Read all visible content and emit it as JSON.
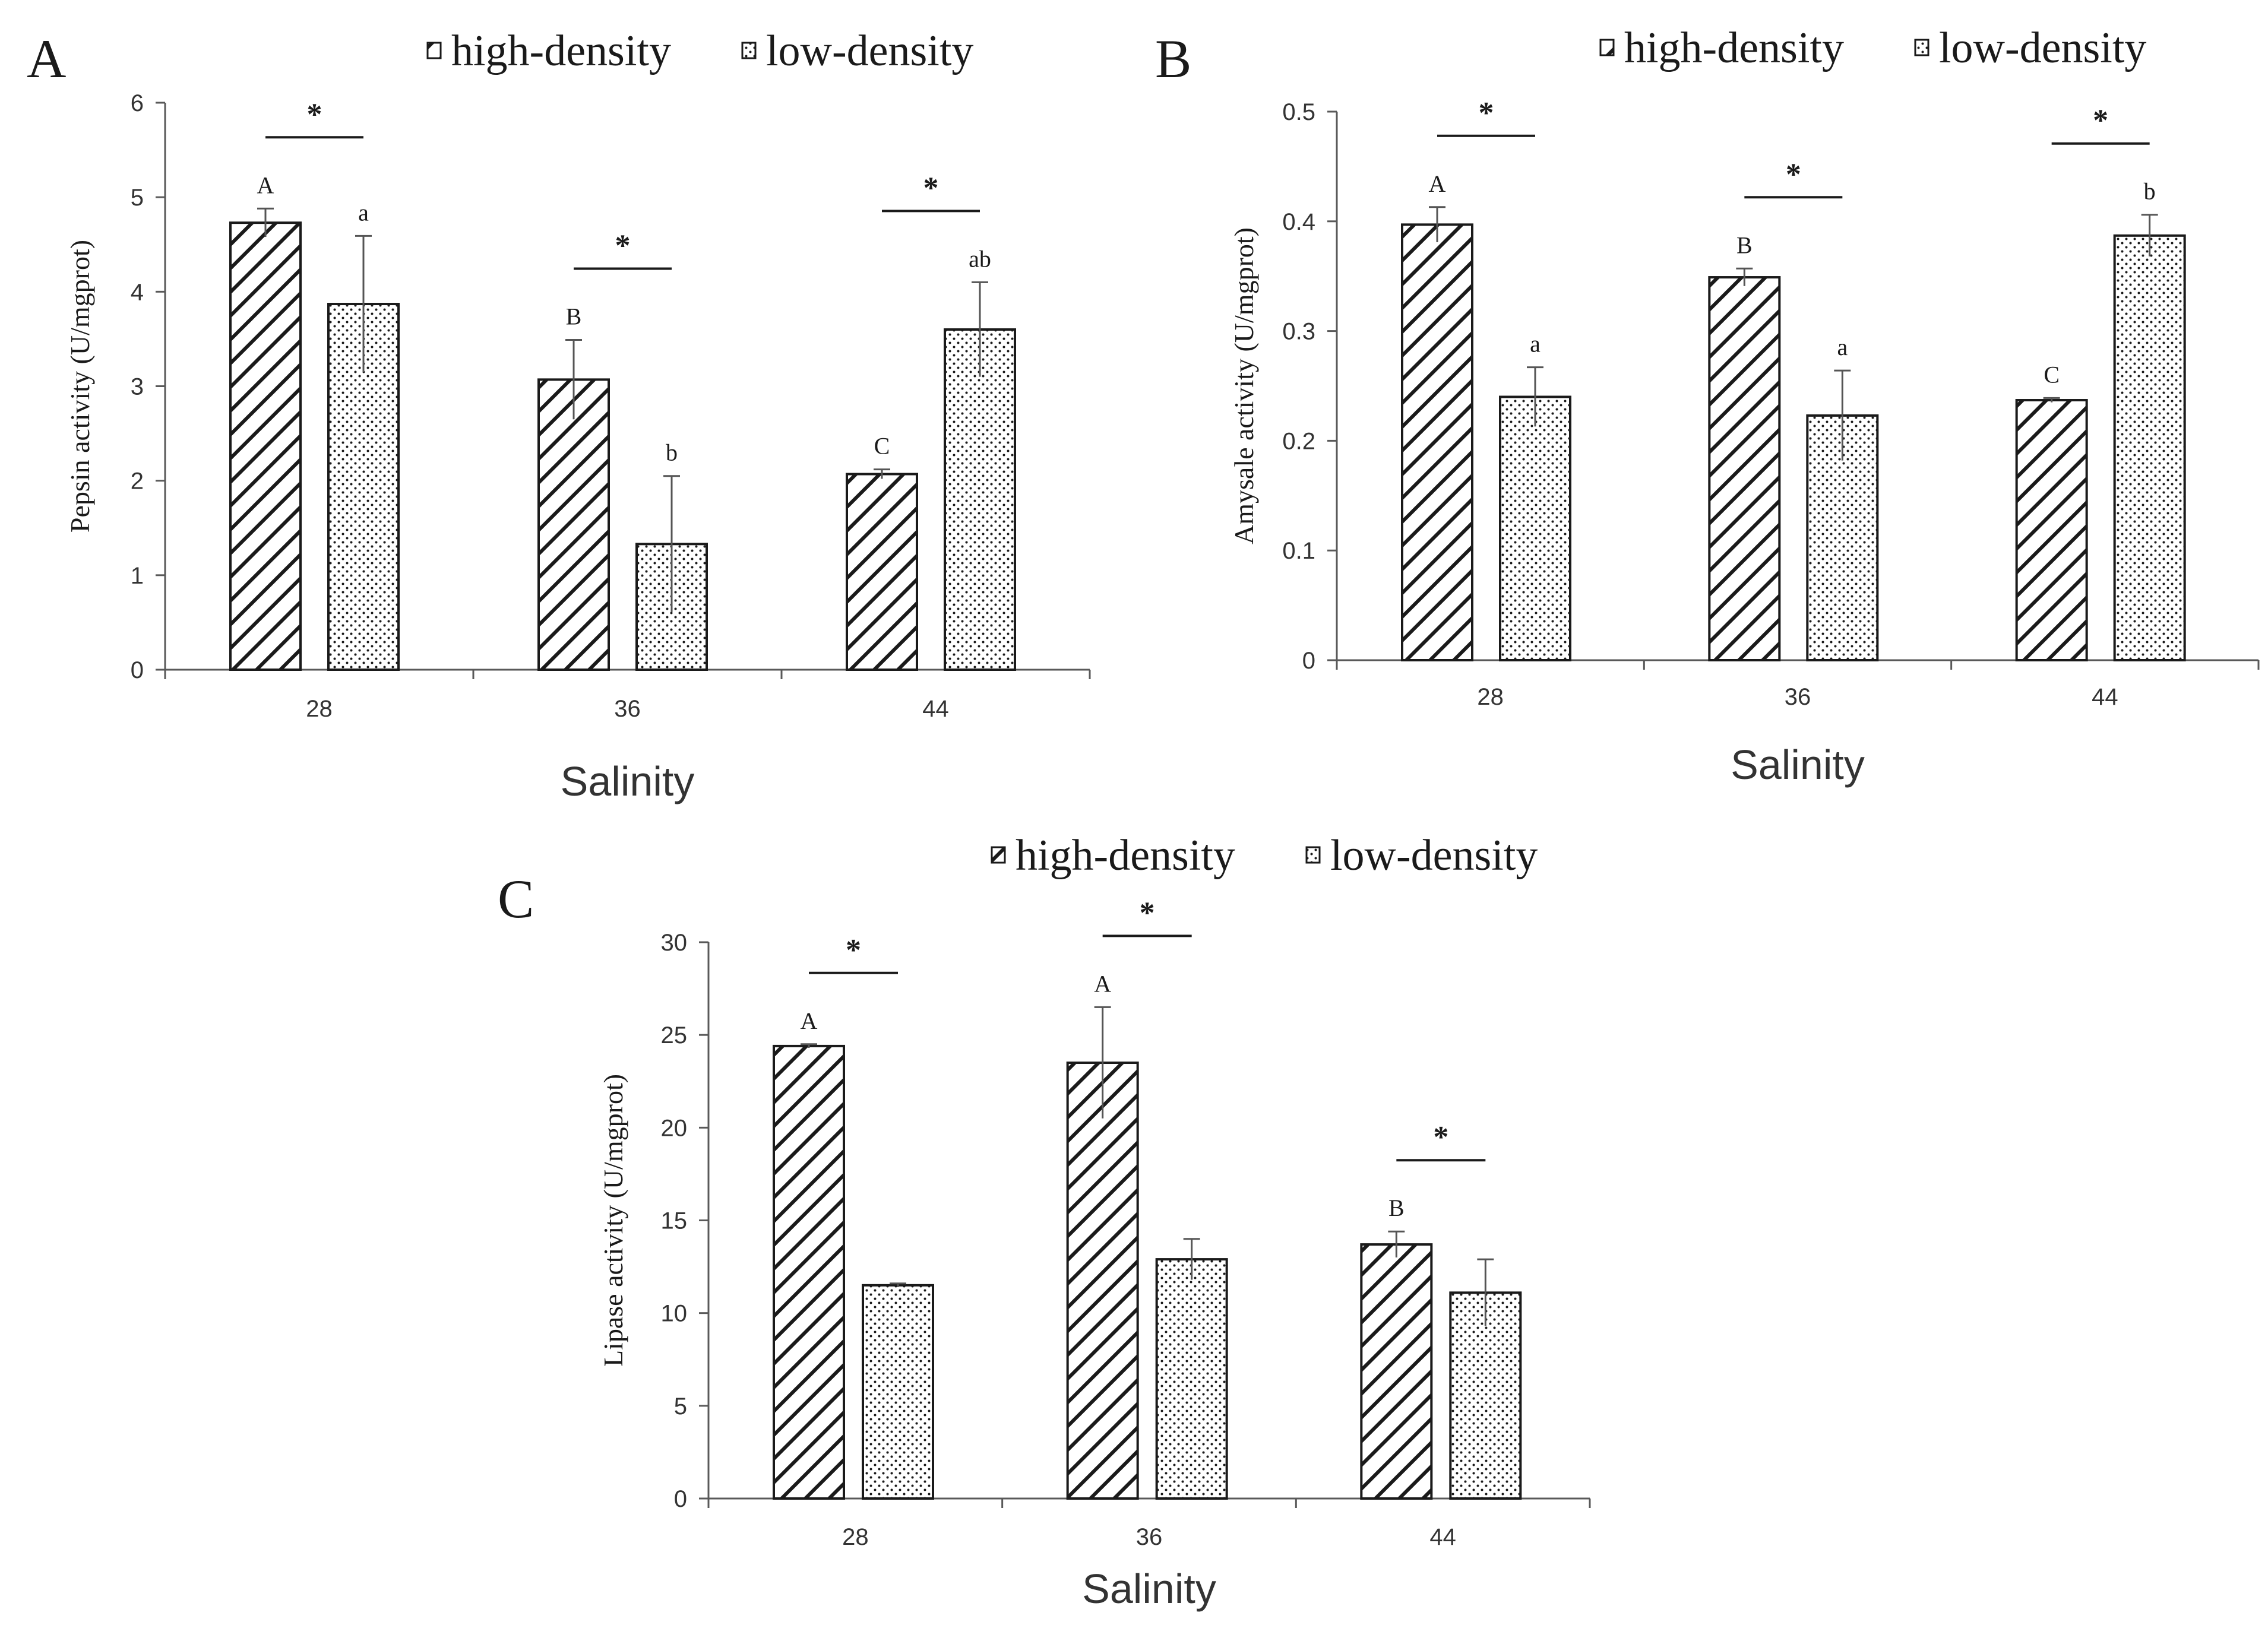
{
  "figure": {
    "legend": {
      "high_label": "high-density",
      "low_label": "low-density"
    },
    "colors": {
      "axis": "#595959",
      "bar_edge": "#1a1a1a",
      "bar_fill": "#ffffff",
      "text": "#1a1a1a",
      "tick_text": "#333333"
    },
    "icons": {
      "high": "hatch-pattern-swatch",
      "low": "dot-pattern-swatch"
    }
  },
  "chart_data": [
    {
      "panel_label": "A",
      "type": "bar",
      "xlabel": "Salinity",
      "ylabel": "Pepsin activity (U/mgprot)",
      "ylim": [
        0,
        6
      ],
      "yticks": [
        "0",
        "1",
        "2",
        "3",
        "4",
        "5",
        "6"
      ],
      "legend_position": "top",
      "categories": [
        "28",
        "36",
        "44"
      ],
      "series": [
        {
          "name": "high-density",
          "values": [
            4.73,
            3.07,
            2.07
          ],
          "errors": [
            0.15,
            0.42,
            0.05
          ],
          "letters": [
            "A",
            "B",
            "C"
          ]
        },
        {
          "name": "low-density",
          "values": [
            3.87,
            1.33,
            3.6
          ],
          "errors": [
            0.72,
            0.72,
            0.5
          ],
          "letters": [
            "a",
            "b",
            "ab"
          ]
        }
      ],
      "significance": [
        "*",
        "*",
        "*"
      ]
    },
    {
      "panel_label": "B",
      "type": "bar",
      "xlabel": "Salinity",
      "ylabel": "Amysale activity (U/mgprot)",
      "ylim": [
        0,
        0.5
      ],
      "yticks": [
        "0",
        "0.1",
        "0.2",
        "0.3",
        "0.4",
        "0.5"
      ],
      "legend_position": "top",
      "categories": [
        "28",
        "36",
        "44"
      ],
      "series": [
        {
          "name": "high-density",
          "values": [
            0.397,
            0.349,
            0.237
          ],
          "errors": [
            0.016,
            0.008,
            0.002
          ],
          "letters": [
            "A",
            "B",
            "C"
          ]
        },
        {
          "name": "low-density",
          "values": [
            0.24,
            0.223,
            0.387
          ],
          "errors": [
            0.027,
            0.041,
            0.019
          ],
          "letters": [
            "a",
            "a",
            "b"
          ]
        }
      ],
      "significance": [
        "*",
        "*",
        "*"
      ]
    },
    {
      "panel_label": "C",
      "type": "bar",
      "xlabel": "Salinity",
      "ylabel": "Lipase activity (U/mgprot)",
      "ylim": [
        0,
        30
      ],
      "yticks": [
        "0",
        "5",
        "10",
        "15",
        "20",
        "25",
        "30"
      ],
      "legend_position": "top",
      "categories": [
        "28",
        "36",
        "44"
      ],
      "series": [
        {
          "name": "high-density",
          "values": [
            24.4,
            23.5,
            13.7
          ],
          "errors": [
            0.1,
            3.0,
            0.7
          ],
          "letters": [
            "A",
            "A",
            "B"
          ]
        },
        {
          "name": "low-density",
          "values": [
            11.5,
            12.9,
            11.1
          ],
          "errors": [
            0.1,
            1.1,
            1.8
          ],
          "letters": [
            "",
            "",
            ""
          ]
        }
      ],
      "significance": [
        "*",
        "*",
        "*"
      ]
    }
  ]
}
